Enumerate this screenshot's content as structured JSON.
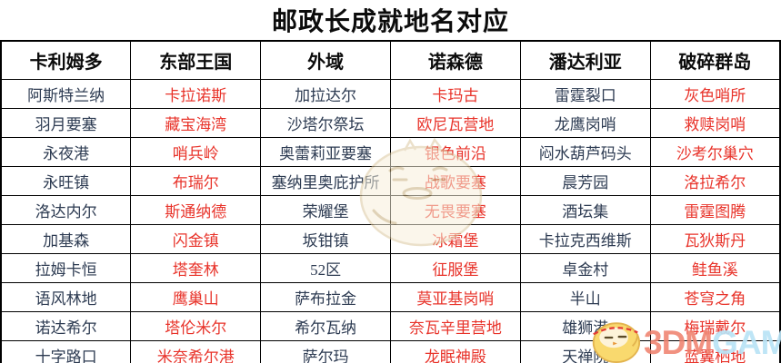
{
  "title": "邮政长成就地名对应",
  "table": {
    "columns": [
      "卡利姆多",
      "东部王国",
      "外域",
      "诺森德",
      "潘达利亚",
      "破碎群岛"
    ],
    "column_text_colors": [
      "dark",
      "red",
      "dark",
      "red",
      "dark",
      "red"
    ],
    "rows": [
      [
        "阿斯特兰纳",
        "卡拉诺斯",
        "加拉达尔",
        "卡玛古",
        "雷霆裂口",
        "灰色哨所"
      ],
      [
        "羽月要塞",
        "藏宝海湾",
        "沙塔尔祭坛",
        "欧尼瓦营地",
        "龙鹰岗哨",
        "救赎岗哨"
      ],
      [
        "永夜港",
        "哨兵岭",
        "奥蕾莉亚要塞",
        "银色前沿",
        "闷水葫芦码头",
        "沙考尔巢穴"
      ],
      [
        "永旺镇",
        "布瑞尔",
        "塞纳里奥庇护所",
        "战歌要塞",
        "晨芳园",
        "洛拉希尔"
      ],
      [
        "洛达内尔",
        "斯通纳德",
        "荣耀堡",
        "无畏要塞",
        "酒坛集",
        "雷霆图腾"
      ],
      [
        "加基森",
        "闪金镇",
        "坂钳镇",
        "冰霜堡",
        "卡拉克西维斯",
        "瓦狄斯丹"
      ],
      [
        "拉姆卡恒",
        "塔奎林",
        "52区",
        "征服堡",
        "卓金村",
        "鲑鱼溪"
      ],
      [
        "语风林地",
        "鹰巢山",
        "萨布拉金",
        "莫亚基岗哨",
        "半山",
        "苍穹之角"
      ],
      [
        "诺达希尔",
        "塔伦米尔",
        "希尔瓦纳",
        "奈瓦辛里营地",
        "雄狮港",
        "梅瑞戴尔"
      ],
      [
        "十字路口",
        "米奈希尔港",
        "萨尔玛",
        "龙眠神殿",
        "天禅院",
        "蓝翼栖地"
      ]
    ]
  },
  "watermark": {
    "center_mascot_icon": "chick-mascot-icon",
    "logo_mascot_icon": "chick-mascot-icon",
    "logo_3dm": "3DM",
    "logo_game": "GAME"
  },
  "colors": {
    "red_text": "#e8332a",
    "dark_text": "#2d3b52",
    "title_text": "#0c0c0c",
    "logo_red": "#f0826f",
    "logo_blue": "#b9e3f6",
    "border": "#000000"
  }
}
